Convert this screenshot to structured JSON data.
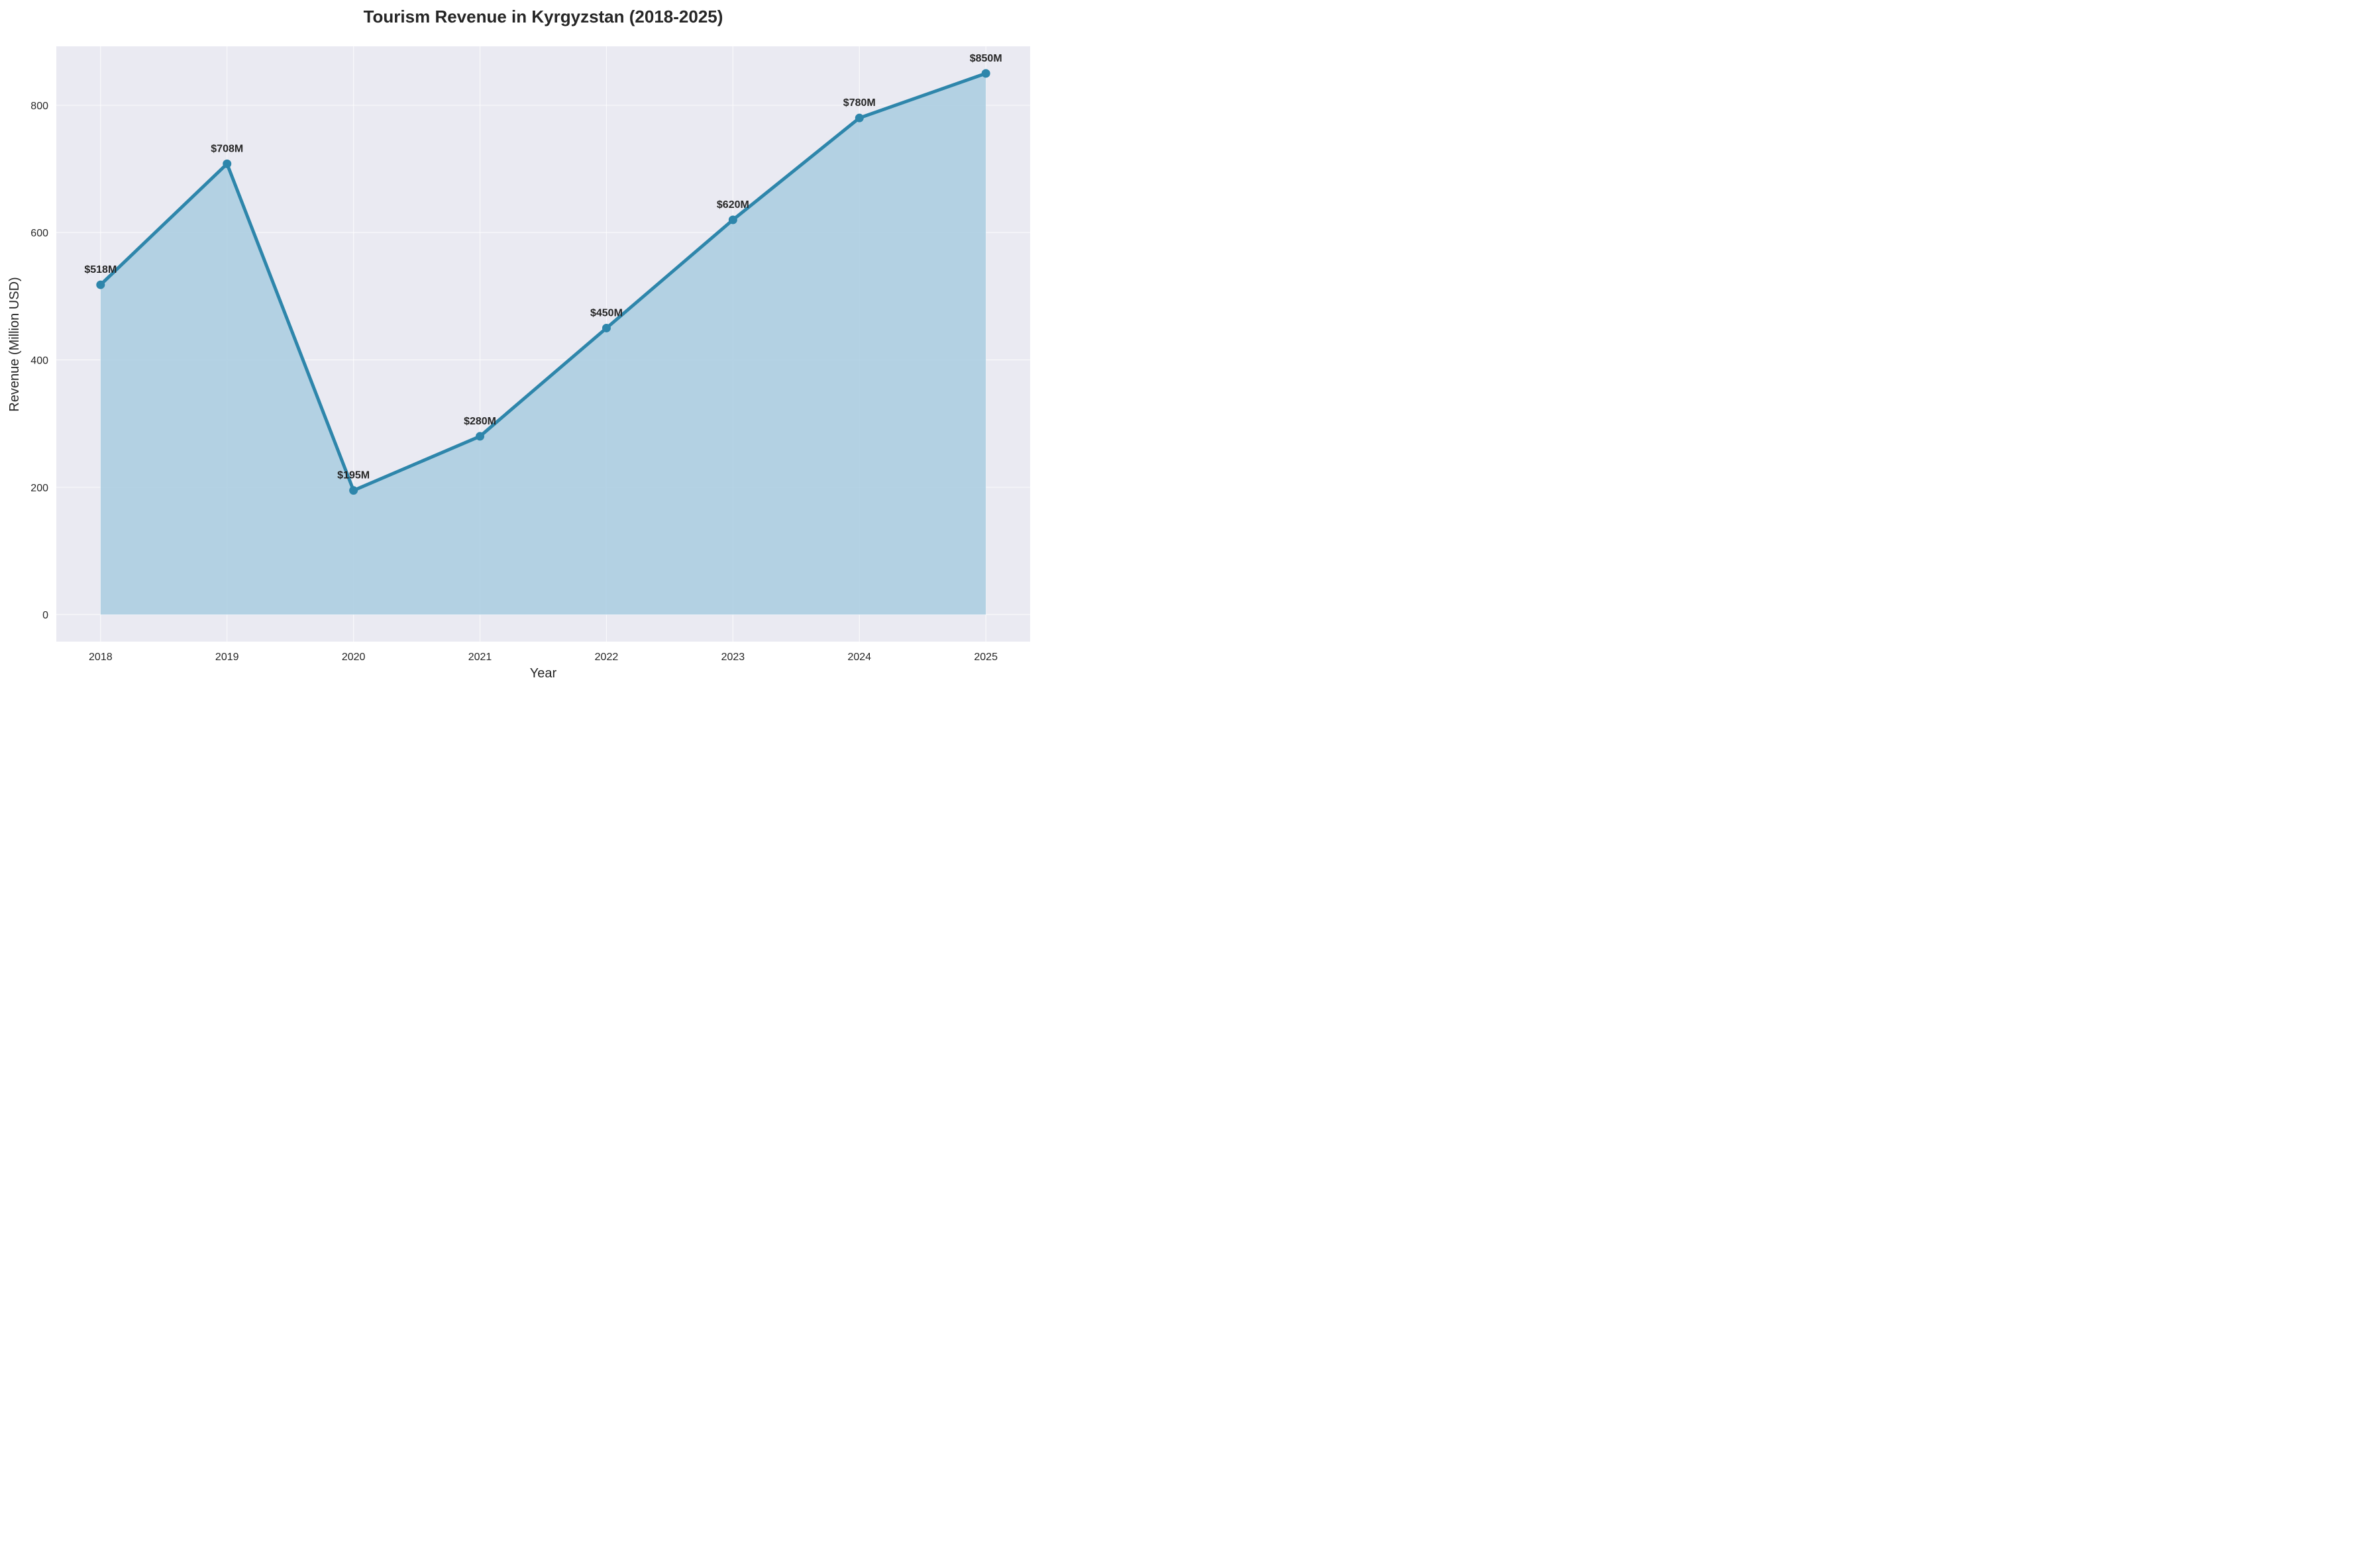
{
  "chart_data": {
    "type": "area",
    "title": "Tourism Revenue in Kyrgyzstan (2018-2025)",
    "xlabel": "Year",
    "ylabel": "Revenue (Million USD)",
    "x": [
      "2018",
      "2019",
      "2020",
      "2021",
      "2022",
      "2023",
      "2024",
      "2025"
    ],
    "series": [
      {
        "values": [
          518,
          708,
          195,
          280,
          450,
          620,
          780,
          850
        ],
        "data_labels": [
          "$518M",
          "$708M",
          "$195M",
          "$280M",
          "$450M",
          "$620M",
          "$780M",
          "$850M"
        ]
      }
    ],
    "yticks": [
      0,
      200,
      400,
      600,
      800
    ],
    "ytick_labels": [
      "0",
      "200",
      "400",
      "600",
      "800"
    ],
    "ylim": [
      -42.5,
      892.5
    ],
    "xlim": [
      -0.35,
      7.35
    ],
    "grid": true,
    "legend": "none",
    "colors": {
      "line": "#2e86ab",
      "fill": "#a9cce0",
      "plot_background": "#eaeaf2",
      "grid": "#ffffff",
      "text": "#262626"
    }
  }
}
